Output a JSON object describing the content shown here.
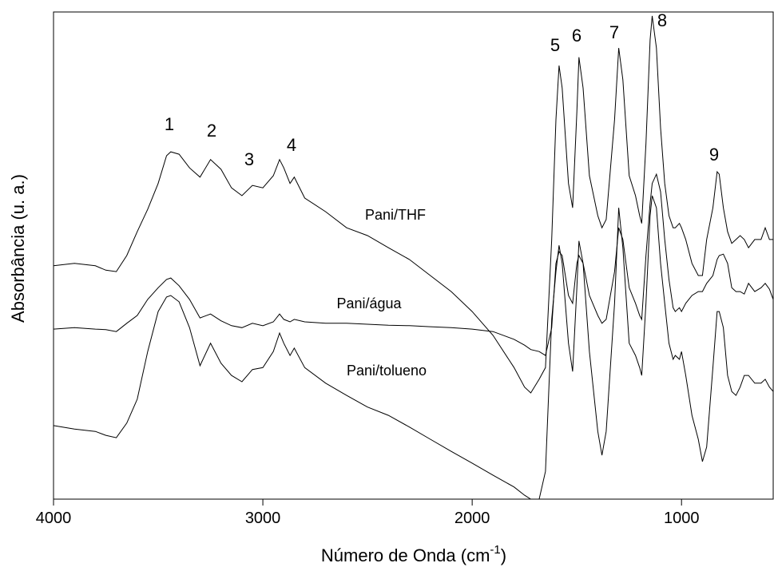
{
  "chart_data": {
    "type": "line",
    "x_label": [
      "Número de Onda (cm",
      "-1",
      ")"
    ],
    "y_label": "Absorbância (u. a.)",
    "xlim": [
      4000,
      562
    ],
    "ylim": [
      0,
      100
    ],
    "xticks": [
      4000,
      3000,
      2000,
      1000
    ],
    "grid": false,
    "x": [
      4000,
      3900,
      3800,
      3750,
      3700,
      3650,
      3600,
      3550,
      3500,
      3460,
      3440,
      3400,
      3350,
      3300,
      3250,
      3200,
      3150,
      3100,
      3050,
      3000,
      2950,
      2920,
      2900,
      2870,
      2850,
      2800,
      2700,
      2600,
      2500,
      2400,
      2300,
      2200,
      2100,
      2000,
      1900,
      1800,
      1750,
      1720,
      1680,
      1650,
      1620,
      1600,
      1585,
      1570,
      1540,
      1520,
      1500,
      1490,
      1470,
      1440,
      1400,
      1380,
      1360,
      1320,
      1300,
      1280,
      1250,
      1220,
      1200,
      1190,
      1170,
      1150,
      1140,
      1120,
      1100,
      1080,
      1060,
      1040,
      1030,
      1010,
      1000,
      980,
      950,
      920,
      900,
      880,
      850,
      830,
      820,
      800,
      780,
      760,
      740,
      720,
      700,
      680,
      650,
      620,
      600,
      580,
      562
    ],
    "series": [
      {
        "name": "Pani/THF",
        "color": "#000000",
        "values": [
          47.9,
          48.4,
          47.9,
          47.0,
          46.7,
          50.0,
          54.9,
          59.5,
          64.8,
          70.5,
          71.3,
          70.8,
          68.0,
          66.1,
          69.7,
          67.7,
          63.9,
          62.3,
          64.4,
          63.9,
          66.4,
          69.7,
          68.0,
          64.8,
          66.1,
          61.8,
          59.0,
          55.7,
          54.1,
          51.6,
          49.2,
          45.9,
          42.6,
          38.5,
          33.6,
          27.0,
          23.0,
          21.8,
          24.6,
          27.0,
          53.3,
          77.9,
          89.0,
          84.4,
          64.8,
          59.8,
          79.5,
          90.7,
          84.4,
          66.4,
          58.2,
          55.7,
          57.4,
          77.9,
          92.6,
          86.1,
          66.4,
          62.3,
          58.2,
          56.6,
          73.0,
          94.3,
          99.2,
          92.6,
          76.2,
          64.8,
          58.2,
          55.7,
          55.7,
          56.6,
          55.7,
          53.3,
          48.4,
          45.9,
          45.9,
          53.3,
          59.8,
          67.2,
          66.7,
          59.8,
          54.9,
          52.5,
          53.3,
          54.1,
          53.3,
          51.6,
          53.3,
          53.3,
          55.7,
          53.3,
          53.3
        ]
      },
      {
        "name": "Pani/água",
        "color": "#000000",
        "values": [
          34.9,
          35.2,
          34.9,
          34.8,
          34.4,
          36.1,
          37.7,
          41.0,
          43.4,
          45.1,
          45.4,
          43.8,
          41.0,
          37.2,
          38.0,
          36.6,
          35.6,
          35.2,
          36.1,
          35.6,
          36.4,
          38.0,
          36.9,
          36.4,
          36.9,
          36.4,
          36.1,
          36.1,
          35.9,
          35.7,
          35.6,
          35.4,
          35.2,
          34.9,
          34.4,
          32.8,
          31.6,
          30.7,
          30.3,
          29.5,
          35.2,
          48.4,
          50.8,
          50.0,
          41.8,
          40.2,
          48.4,
          50.0,
          48.4,
          41.8,
          37.7,
          36.1,
          36.9,
          46.7,
          55.7,
          53.3,
          43.4,
          40.2,
          37.7,
          36.9,
          50.0,
          60.7,
          64.8,
          66.7,
          63.1,
          53.3,
          45.1,
          39.3,
          38.5,
          39.3,
          38.5,
          40.2,
          41.8,
          42.6,
          42.6,
          44.3,
          45.9,
          49.2,
          50.0,
          50.3,
          48.4,
          43.4,
          42.6,
          42.6,
          42.1,
          44.3,
          42.6,
          43.4,
          44.3,
          43.1,
          41.0
        ]
      },
      {
        "name": "Pani/tolueno",
        "color": "#000000",
        "values": [
          15.1,
          14.4,
          13.9,
          13.1,
          12.6,
          15.6,
          20.5,
          30.3,
          38.5,
          41.5,
          41.8,
          40.5,
          35.2,
          27.4,
          32.0,
          27.9,
          25.4,
          24.1,
          26.6,
          27.0,
          30.3,
          34.1,
          32.0,
          29.5,
          31.0,
          27.0,
          23.8,
          21.3,
          18.9,
          17.2,
          14.8,
          12.3,
          9.8,
          7.4,
          4.9,
          2.5,
          0.8,
          0,
          0,
          5.7,
          36.9,
          46.7,
          52.1,
          48.4,
          32.0,
          26.2,
          43.4,
          53.0,
          48.4,
          30.3,
          13.9,
          9.0,
          13.9,
          40.2,
          59.8,
          51.6,
          32.0,
          29.5,
          27.0,
          25.4,
          40.2,
          58.2,
          62.3,
          59.8,
          48.4,
          40.2,
          32.0,
          28.7,
          29.5,
          28.7,
          30.3,
          25.4,
          17.2,
          12.3,
          7.7,
          10.7,
          27.0,
          38.5,
          38.5,
          35.2,
          25.4,
          22.1,
          21.3,
          23.0,
          25.4,
          25.4,
          23.8,
          23.8,
          24.6,
          23.0,
          22.1
        ]
      }
    ],
    "annotations": [
      "1",
      "2",
      "3",
      "4",
      "5",
      "6",
      "7",
      "8",
      "9"
    ]
  }
}
